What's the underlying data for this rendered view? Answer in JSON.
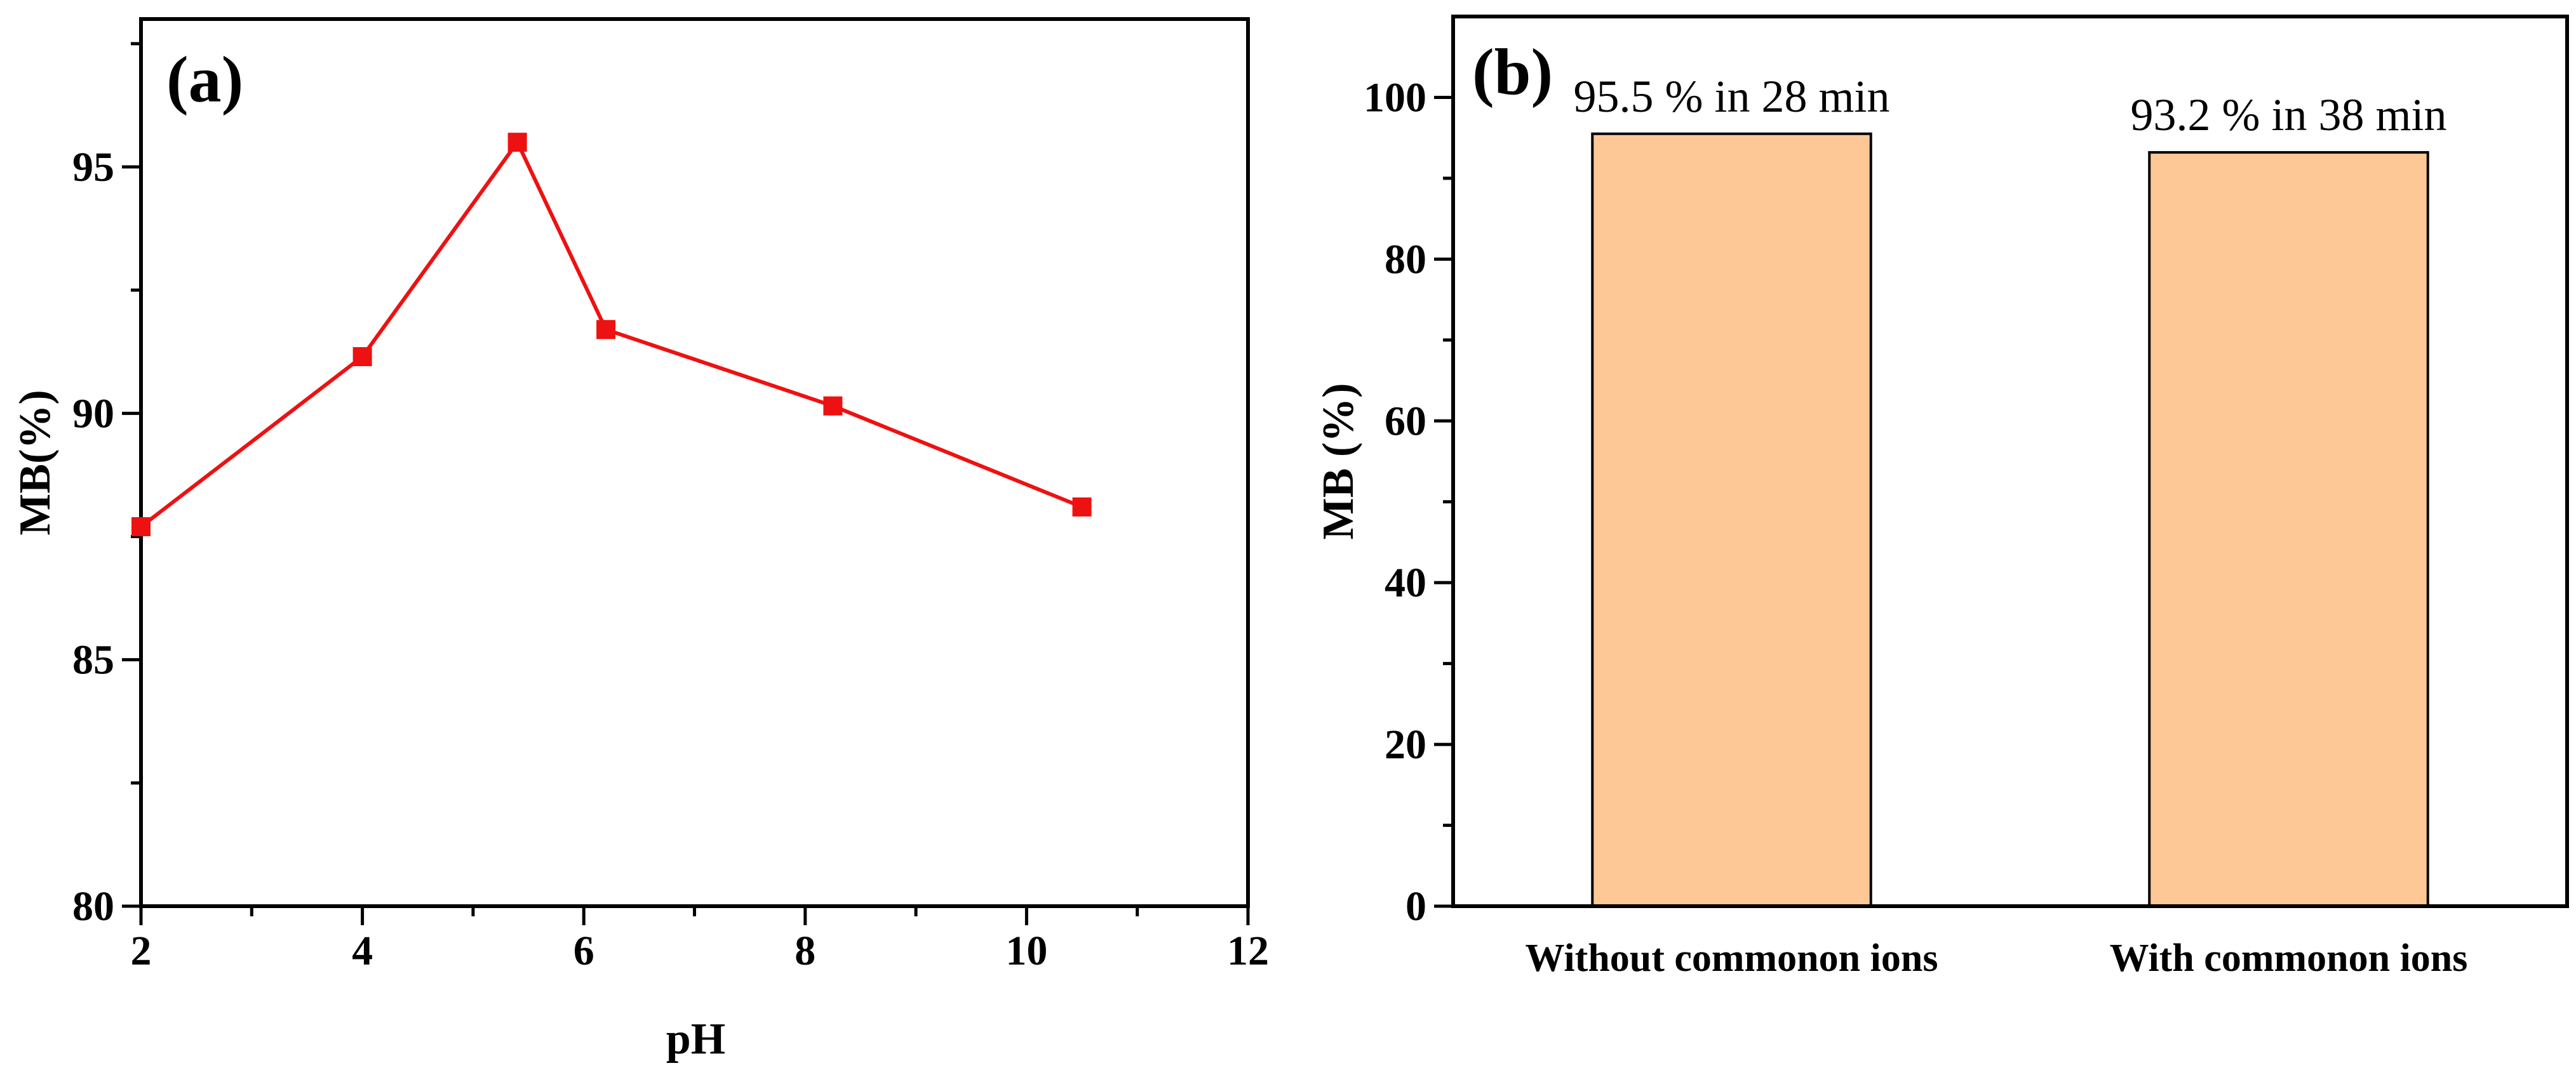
{
  "chart_data": [
    {
      "panel": "(a)",
      "type": "line",
      "title": "",
      "xlabel": "pH",
      "ylabel": "MB(%)",
      "xlim": [
        2,
        12
      ],
      "ylim": [
        80,
        98
      ],
      "xticks": [
        2,
        4,
        6,
        8,
        10,
        12
      ],
      "yticks": [
        80,
        85,
        90,
        95
      ],
      "grid": false,
      "series": [
        {
          "name": "MB",
          "color": "#ee1111",
          "marker": "square",
          "x": [
            2.0,
            4.0,
            5.4,
            6.2,
            8.25,
            10.5
          ],
          "y": [
            87.7,
            91.15,
            95.5,
            91.7,
            90.15,
            88.1
          ]
        }
      ]
    },
    {
      "panel": "(b)",
      "type": "bar",
      "title": "",
      "xlabel": "",
      "ylabel": "MB (%)",
      "ylim": [
        0,
        110
      ],
      "yticks": [
        0,
        20,
        40,
        60,
        80,
        100
      ],
      "grid": false,
      "bar_color": "#fdc796",
      "categories": [
        "Without commonon ions",
        "With commonon ions"
      ],
      "values": [
        95.5,
        93.2
      ],
      "data_labels": [
        "95.5 % in 28 min",
        "93.2 % in 38 min"
      ]
    }
  ]
}
